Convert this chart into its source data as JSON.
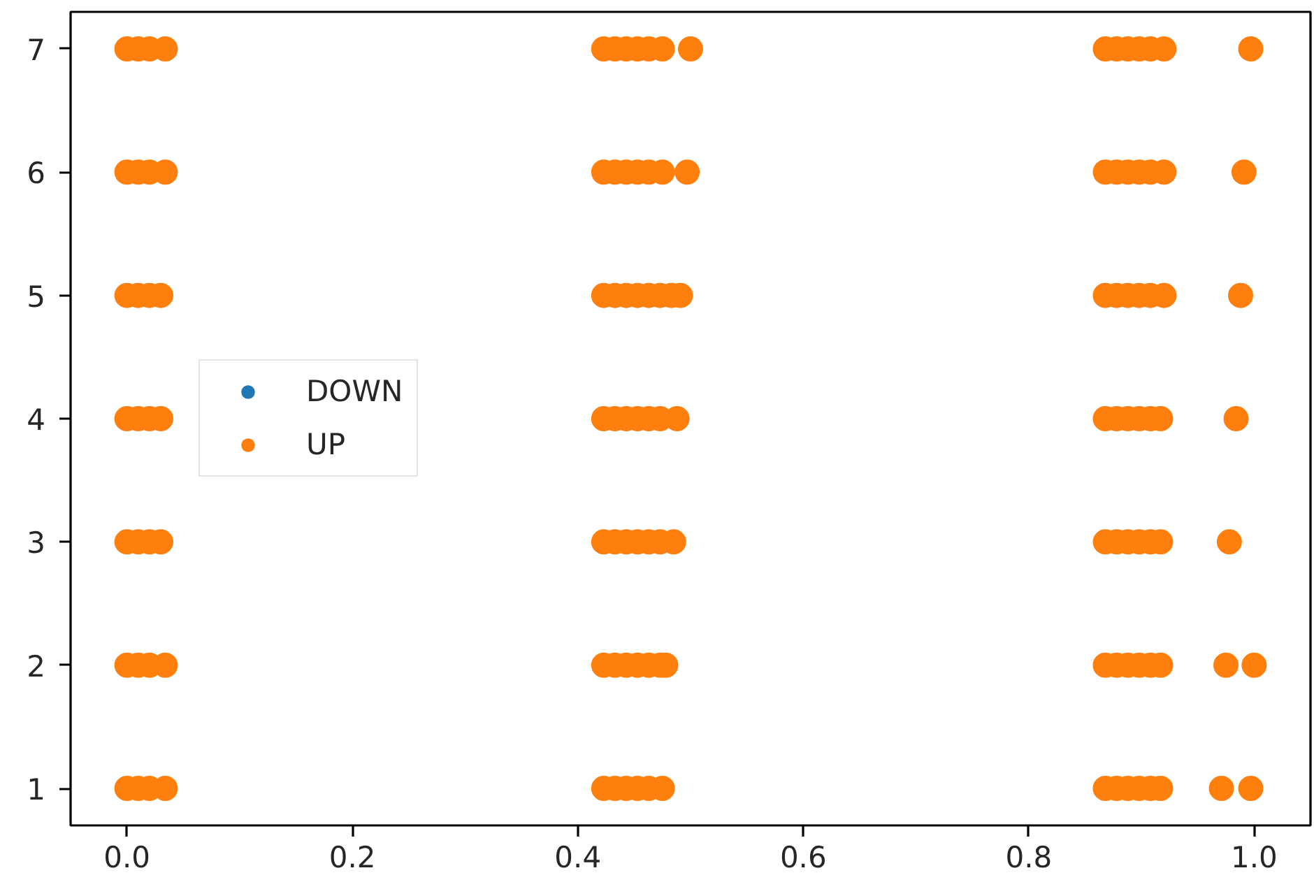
{
  "chart_data": {
    "type": "scatter",
    "xlim": [
      -0.05,
      1.05
    ],
    "ylim": [
      0.7,
      7.3
    ],
    "xticks": [
      {
        "value": 0,
        "label": "0.0"
      },
      0.2,
      0.4,
      0.6,
      0.8,
      {
        "value": 1,
        "label": "1.0"
      }
    ],
    "yticks": [
      1,
      2,
      3,
      4,
      5,
      6,
      7
    ],
    "grid": false,
    "legend": "center left",
    "marker": "circle",
    "series": [
      {
        "name": "DOWN",
        "color": "#1f77b4"
      },
      {
        "name": "UP",
        "color": "#ff7f0e",
        "x": [
          0.0,
          0.01,
          0.02,
          0.034,
          0.423,
          0.433,
          0.443,
          0.453,
          0.463,
          0.475,
          0.5,
          0.868,
          0.878,
          0.888,
          0.898,
          0.908,
          0.92,
          0.997,
          0.0,
          0.01,
          0.02,
          0.034,
          0.423,
          0.433,
          0.443,
          0.453,
          0.463,
          0.475,
          0.497,
          0.868,
          0.878,
          0.888,
          0.898,
          0.908,
          0.92,
          0.991,
          0.0,
          0.01,
          0.02,
          0.03,
          0.423,
          0.433,
          0.443,
          0.453,
          0.463,
          0.473,
          0.483,
          0.491,
          0.868,
          0.878,
          0.888,
          0.898,
          0.908,
          0.92,
          0.988,
          0.0,
          0.01,
          0.02,
          0.03,
          0.423,
          0.433,
          0.443,
          0.453,
          0.463,
          0.473,
          0.488,
          0.868,
          0.878,
          0.888,
          0.898,
          0.908,
          0.917,
          0.984,
          0.0,
          0.01,
          0.02,
          0.03,
          0.423,
          0.433,
          0.443,
          0.453,
          0.463,
          0.473,
          0.485,
          0.868,
          0.878,
          0.888,
          0.898,
          0.908,
          0.917,
          0.978,
          0.0,
          0.01,
          0.02,
          0.034,
          0.423,
          0.433,
          0.443,
          0.453,
          0.463,
          0.473,
          0.478,
          0.868,
          0.878,
          0.888,
          0.898,
          0.908,
          0.917,
          0.975,
          1.0,
          0.0,
          0.01,
          0.02,
          0.034,
          0.423,
          0.433,
          0.443,
          0.453,
          0.463,
          0.475,
          0.868,
          0.878,
          0.888,
          0.898,
          0.908,
          0.917,
          0.971,
          0.997
        ],
        "values": [
          7,
          7,
          7,
          7,
          7,
          7,
          7,
          7,
          7,
          7,
          7,
          7,
          7,
          7,
          7,
          7,
          7,
          7,
          6,
          6,
          6,
          6,
          6,
          6,
          6,
          6,
          6,
          6,
          6,
          6,
          6,
          6,
          6,
          6,
          6,
          6,
          5,
          5,
          5,
          5,
          5,
          5,
          5,
          5,
          5,
          5,
          5,
          5,
          5,
          5,
          5,
          5,
          5,
          5,
          5,
          4,
          4,
          4,
          4,
          4,
          4,
          4,
          4,
          4,
          4,
          4,
          4,
          4,
          4,
          4,
          4,
          4,
          4,
          3,
          3,
          3,
          3,
          3,
          3,
          3,
          3,
          3,
          3,
          3,
          3,
          3,
          3,
          3,
          3,
          3,
          3,
          2,
          2,
          2,
          2,
          2,
          2,
          2,
          2,
          2,
          2,
          2,
          2,
          2,
          2,
          2,
          2,
          2,
          2,
          2,
          1,
          1,
          1,
          1,
          1,
          1,
          1,
          1,
          1,
          1,
          1,
          1,
          1,
          1,
          1,
          1,
          1,
          1
        ]
      }
    ]
  }
}
